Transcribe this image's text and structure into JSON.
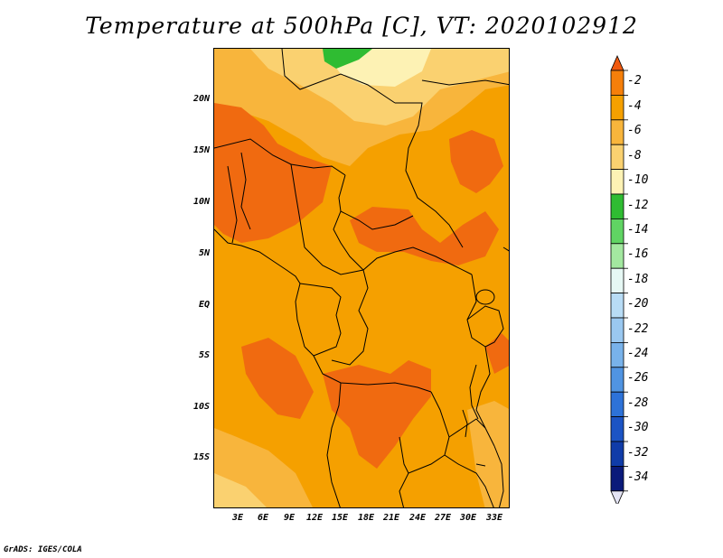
{
  "title": "Temperature at 500hPa [C], VT: 2020102912",
  "credit": "GrADS: IGES/COLA",
  "lat_labels": [
    "20N",
    "15N",
    "10N",
    "5N",
    "EQ",
    "5S",
    "10S",
    "15S"
  ],
  "lon_labels": [
    "3E",
    "6E",
    "9E",
    "12E",
    "15E",
    "18E",
    "21E",
    "24E",
    "27E",
    "30E",
    "33E"
  ],
  "colorbar": {
    "labels": [
      "-2",
      "-4",
      "-6",
      "-8",
      "-10",
      "-12",
      "-14",
      "-16",
      "-18",
      "-20",
      "-22",
      "-24",
      "-26",
      "-28",
      "-30",
      "-32",
      "-34"
    ],
    "colors": [
      "#f05a10",
      "#f57f0a",
      "#f5a000",
      "#f8b53c",
      "#fad170",
      "#fdf2b4",
      "#2fbc32",
      "#60d463",
      "#a3e8a0",
      "#e6f8f4",
      "#b8dcf5",
      "#9ac8f0",
      "#78b2ea",
      "#5094e2",
      "#2d72d8",
      "#1c54c4",
      "#103ca8",
      "#0a1a7a"
    ],
    "under_color": "#e4e4f4"
  }
}
